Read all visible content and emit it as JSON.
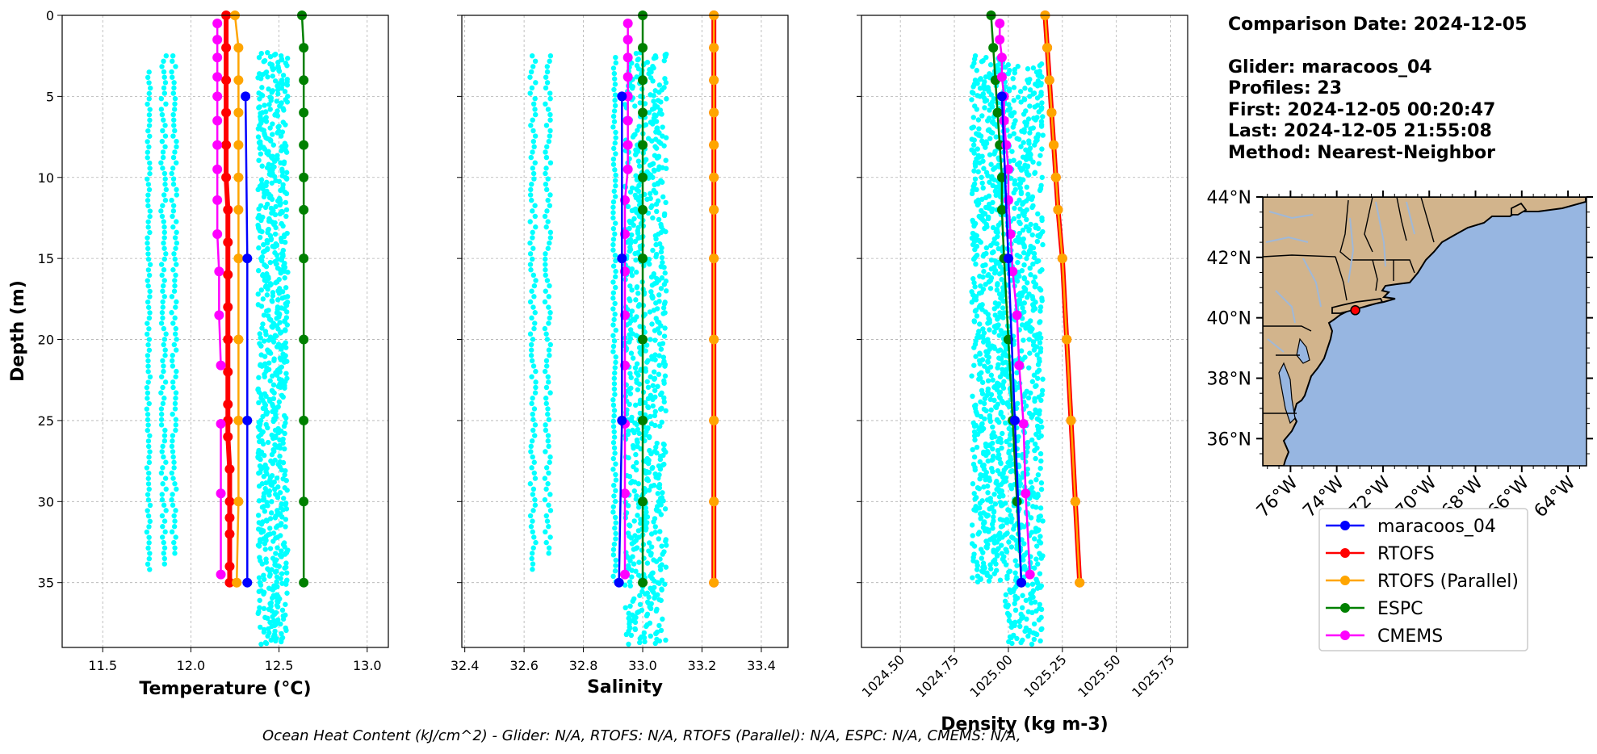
{
  "info": {
    "comparison_date": "Comparison Date: 2024-12-05",
    "glider": "Glider: maracoos_04",
    "profiles": "Profiles: 23",
    "first": "First: 2024-12-05 00:20:47",
    "last": "Last: 2024-12-05 21:55:08",
    "method": "Method: Nearest-Neighbor"
  },
  "footer": "Ocean Heat Content (kJ/cm^2) - Glider: N/A,  RTOFS: N/A,  RTOFS (Parallel): N/A,  ESPC: N/A,  CMEMS: N/A,",
  "colors": {
    "glider_obs": "#00ffff",
    "maracoos_04": "#0000ff",
    "RTOFS": "#ff0000",
    "RTOFS (Parallel)": "#ffa500",
    "ESPC": "#008000",
    "CMEMS": "#ff00ff",
    "land": "#d2b48c",
    "ocean": "#97b6e1",
    "rivers": "#9fb8d8"
  },
  "chart_data": [
    {
      "type": "line",
      "panel": "temperature",
      "xlabel": "Temperature (°C)",
      "ylabel": "Depth (m)",
      "xlim": [
        11.27,
        13.12
      ],
      "ylim": [
        39,
        0
      ],
      "xticks": [
        11.5,
        12.0,
        12.5,
        13.0
      ],
      "xtick_labels": [
        "11.5",
        "12.0",
        "12.5",
        "13.0"
      ],
      "yticks": [
        0,
        5,
        10,
        15,
        20,
        25,
        30,
        35
      ],
      "ytick_labels": [
        "0",
        "5",
        "10",
        "15",
        "20",
        "25",
        "30",
        "35"
      ],
      "grid": true,
      "scatter_bands": [
        {
          "x_min": 11.75,
          "x_max": 11.77,
          "depth_min": 3.5,
          "depth_max": 34.2
        },
        {
          "x_min": 11.83,
          "x_max": 11.86,
          "depth_min": 2.5,
          "depth_max": 34
        },
        {
          "x_min": 11.89,
          "x_max": 11.92,
          "depth_min": 2.5,
          "depth_max": 33.5
        },
        {
          "x_min": 12.38,
          "x_max": 12.55,
          "depth_min": 2.3,
          "depth_max": 38.8
        }
      ],
      "series": [
        {
          "name": "maracoos_04",
          "x": [
            12.31,
            12.32,
            12.32,
            12.32
          ],
          "depth": [
            5,
            15,
            25,
            35
          ]
        },
        {
          "name": "RTOFS",
          "x": [
            12.2,
            12.2,
            12.2,
            12.2,
            12.2,
            12.2,
            12.21,
            12.21,
            12.21,
            12.21,
            12.21,
            12.21,
            12.21,
            12.21,
            12.21,
            12.22,
            12.22,
            12.22,
            12.22,
            12.22,
            12.22
          ],
          "depth": [
            0,
            2,
            4,
            6,
            8,
            10,
            12,
            14,
            16,
            18,
            20,
            22,
            24,
            25,
            26,
            28,
            30,
            31,
            32,
            34,
            35
          ]
        },
        {
          "name": "RTOFS (Parallel)",
          "x": [
            12.25,
            12.27,
            12.27,
            12.27,
            12.27,
            12.27,
            12.27,
            12.27,
            12.27,
            12.27,
            12.27,
            12.26,
            12.26
          ],
          "depth": [
            0,
            2,
            4,
            6,
            8,
            10,
            12,
            15,
            20,
            25,
            30,
            35,
            35
          ]
        },
        {
          "name": "ESPC",
          "x": [
            12.63,
            12.64,
            12.64,
            12.64,
            12.64,
            12.64,
            12.64,
            12.64,
            12.64,
            12.64,
            12.64,
            12.64
          ],
          "depth": [
            0,
            2,
            4,
            6,
            8,
            10,
            12,
            15,
            20,
            25,
            30,
            35
          ]
        },
        {
          "name": "CMEMS",
          "x": [
            12.15,
            12.15,
            12.15,
            12.15,
            12.15,
            12.15,
            12.15,
            12.15,
            12.15,
            12.15,
            12.16,
            12.16,
            12.17
          ],
          "depth": [
            0.5,
            1.5,
            2.6,
            3.8,
            5,
            6.5,
            8,
            9.5,
            11.4,
            13.5,
            15.8,
            18.5,
            21.6
          ]
        },
        {
          "name": "CMEMS",
          "x": [
            12.17,
            12.17,
            12.17
          ],
          "depth": [
            25.2,
            29.5,
            34.5
          ]
        }
      ]
    },
    {
      "type": "line",
      "panel": "salinity",
      "xlabel": "Salinity",
      "ylabel": "",
      "xlim": [
        32.39,
        33.49
      ],
      "ylim": [
        39,
        0
      ],
      "xticks": [
        32.4,
        32.6,
        32.8,
        33.0,
        33.2,
        33.4
      ],
      "xtick_labels": [
        "32.4",
        "32.6",
        "32.8",
        "33.0",
        "33.2",
        "33.4"
      ],
      "grid": true,
      "scatter_bands": [
        {
          "x_min": 32.62,
          "x_max": 32.64,
          "depth_min": 2.5,
          "depth_max": 34.2
        },
        {
          "x_min": 32.67,
          "x_max": 32.69,
          "depth_min": 2.5,
          "depth_max": 33.2
        },
        {
          "x_min": 32.9,
          "x_max": 32.91,
          "depth_min": 2.6,
          "depth_max": 35.1
        },
        {
          "x_min": 32.94,
          "x_max": 33.08,
          "depth_min": 2.3,
          "depth_max": 38.8
        }
      ],
      "series": [
        {
          "name": "maracoos_04",
          "x": [
            32.93,
            32.93,
            32.93,
            32.92
          ],
          "depth": [
            5,
            15,
            25,
            35
          ]
        },
        {
          "name": "RTOFS",
          "x": [
            33.24,
            33.24,
            33.24,
            33.24,
            33.24,
            33.24,
            33.24,
            33.24,
            33.24,
            33.24,
            33.24,
            33.24
          ],
          "depth": [
            0,
            2,
            4,
            6,
            8,
            10,
            12,
            15,
            20,
            25,
            30,
            35
          ]
        },
        {
          "name": "RTOFS (Parallel)",
          "x": [
            33.24,
            33.24,
            33.24,
            33.24,
            33.24,
            33.24,
            33.24,
            33.24,
            33.24,
            33.24,
            33.24,
            33.24
          ],
          "depth": [
            0,
            2,
            4,
            6,
            8,
            10,
            12,
            15,
            20,
            25,
            30,
            35
          ]
        },
        {
          "name": "ESPC",
          "x": [
            33.0,
            33.0,
            33.0,
            33.0,
            33.0,
            33.0,
            33.0,
            33.0,
            33.0,
            33.0,
            33.0,
            33.0
          ],
          "depth": [
            0,
            2,
            4,
            6,
            8,
            10,
            12,
            15,
            20,
            25,
            30,
            35
          ]
        },
        {
          "name": "CMEMS",
          "x": [
            32.95,
            32.95,
            32.95,
            32.95,
            32.95,
            32.95,
            32.95,
            32.95,
            32.94,
            32.94,
            32.94,
            32.94,
            32.94,
            32.94,
            32.94,
            32.94
          ],
          "depth": [
            0.5,
            1.5,
            2.6,
            3.8,
            5,
            6.5,
            8,
            9.5,
            11.4,
            13.5,
            15.8,
            18.5,
            21.6,
            25.2,
            29.5,
            34.5
          ]
        }
      ]
    },
    {
      "type": "line",
      "panel": "density",
      "xlabel": "Density (kg m-3)",
      "ylabel": "",
      "xlim": [
        1024.32,
        1025.83
      ],
      "ylim": [
        39,
        0
      ],
      "xticks": [
        1024.5,
        1024.75,
        1025.0,
        1025.25,
        1025.5,
        1025.75
      ],
      "xtick_labels": [
        "1024.50",
        "1024.75",
        "1025.00",
        "1025.25",
        "1025.50",
        "1025.75"
      ],
      "grid": true,
      "scatter_bands": [
        {
          "x_min": 1024.83,
          "x_max": 1024.98,
          "depth_min": 2.5,
          "depth_max": 35
        },
        {
          "x_min": 1024.98,
          "x_max": 1025.16,
          "depth_min": 3,
          "depth_max": 38.8
        }
      ],
      "series": [
        {
          "name": "maracoos_04",
          "x": [
            1024.97,
            1025.0,
            1025.03,
            1025.06
          ],
          "depth": [
            5,
            15,
            25,
            35
          ]
        },
        {
          "name": "RTOFS",
          "x": [
            1025.17,
            1025.18,
            1025.19,
            1025.2,
            1025.21,
            1025.22,
            1025.23,
            1025.25,
            1025.27,
            1025.29,
            1025.31,
            1025.33
          ],
          "depth": [
            0,
            2,
            4,
            6,
            8,
            10,
            12,
            15,
            20,
            25,
            30,
            35
          ]
        },
        {
          "name": "RTOFS (Parallel)",
          "x": [
            1025.17,
            1025.18,
            1025.19,
            1025.2,
            1025.21,
            1025.22,
            1025.23,
            1025.25,
            1025.27,
            1025.29,
            1025.31,
            1025.33
          ],
          "depth": [
            0,
            2,
            4,
            6,
            8,
            10,
            12,
            15,
            20,
            25,
            30,
            35
          ]
        },
        {
          "name": "ESPC",
          "x": [
            1024.92,
            1024.93,
            1024.94,
            1024.95,
            1024.96,
            1024.97,
            1024.97,
            1024.98,
            1025.0,
            1025.02,
            1025.04,
            1025.06
          ],
          "depth": [
            0,
            2,
            4,
            6,
            8,
            10,
            12,
            15,
            20,
            25,
            30,
            35
          ]
        },
        {
          "name": "CMEMS",
          "x": [
            1024.96,
            1024.96,
            1024.97,
            1024.97,
            1024.98,
            1024.98,
            1024.99,
            1025.0,
            1025.0,
            1025.01,
            1025.02,
            1025.04,
            1025.05,
            1025.07,
            1025.08,
            1025.1
          ],
          "depth": [
            0.5,
            1.5,
            2.6,
            3.8,
            5,
            6.5,
            8,
            9.5,
            11.4,
            13.5,
            15.8,
            18.5,
            21.6,
            25.2,
            29.5,
            34.5
          ]
        }
      ]
    }
  ],
  "map": {
    "lon_range": [
      -77.2,
      -63.2
    ],
    "lat_range": [
      35.1,
      44
    ],
    "lat_ticks": [
      36,
      38,
      40,
      42,
      44
    ],
    "lat_tick_labels": [
      "36°N",
      "38°N",
      "40°N",
      "42°N",
      "44°N"
    ],
    "lon_ticks": [
      -76,
      -74,
      -72,
      -70,
      -68,
      -66,
      -64
    ],
    "lon_tick_labels": [
      "76°W",
      "74°W",
      "72°W",
      "70°W",
      "68°W",
      "66°W",
      "64°W"
    ],
    "glider_position": {
      "lon": -73.2,
      "lat": 40.25
    }
  },
  "legend": {
    "placement": "below-map",
    "entries": [
      {
        "label": "maracoos_04",
        "color": "#0000ff"
      },
      {
        "label": "RTOFS",
        "color": "#ff0000"
      },
      {
        "label": "RTOFS (Parallel)",
        "color": "#ffa500"
      },
      {
        "label": "ESPC",
        "color": "#008000"
      },
      {
        "label": "CMEMS",
        "color": "#ff00ff"
      }
    ]
  }
}
